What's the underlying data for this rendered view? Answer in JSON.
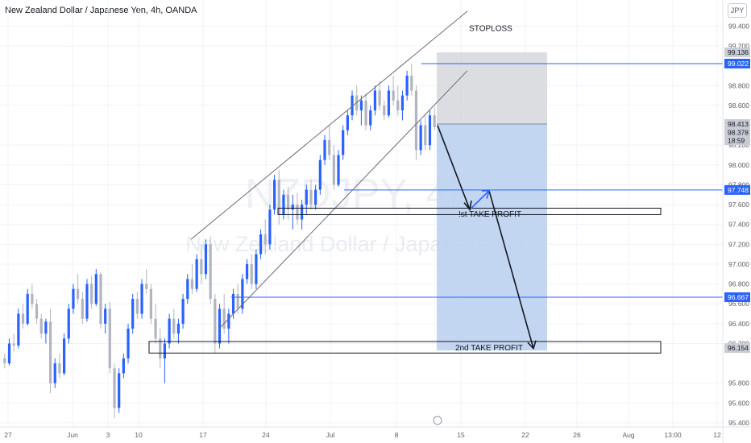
{
  "header": {
    "title": "New Zealand Dollar / Japanese Yen, 4h, OANDA",
    "currency_button": "JPY"
  },
  "watermark": {
    "symbol": "NZDJPY, 4h",
    "name": "New Zealand Dollar / Japanese Yen"
  },
  "colors": {
    "up_candle": "#2962ff",
    "down_candle": "#b2b5be",
    "stop_zone": "#d6d7dc",
    "profit_zone": "#bcd1ef",
    "line_blue": "#2962ff"
  },
  "chart_data": {
    "type": "candlestick",
    "title": "New Zealand Dollar / Japanese Yen, 4h, OANDA",
    "ylim": [
      95.4,
      99.46
    ],
    "y_ticks": [
      "99.400",
      "99.200",
      "98.800",
      "98.600",
      "98.200",
      "98.000",
      "97.800",
      "97.600",
      "97.400",
      "97.200",
      "97.000",
      "96.800",
      "96.600",
      "96.400",
      "96.200",
      "95.800",
      "95.600",
      "95.400"
    ],
    "x_ticks": [
      "27",
      "Jun",
      "3",
      "10",
      "17",
      "24",
      "Jul",
      "8",
      "15",
      "22",
      "26",
      "Aug",
      "13:00",
      "12"
    ],
    "price_tags": [
      {
        "value": "99.136",
        "style": "gray"
      },
      {
        "value": "99.022",
        "style": "blue"
      },
      {
        "value": "98.413",
        "style": "gray"
      },
      {
        "value": "98.378",
        "style": "gray"
      },
      {
        "value": "18:59",
        "style": "gray"
      },
      {
        "value": "97.748",
        "style": "blue"
      },
      {
        "value": "96.667",
        "style": "blue"
      },
      {
        "value": "96.154",
        "style": "gray"
      }
    ],
    "annotations": {
      "stoploss": "STOPLOSS",
      "tp1": "!st TAKE PROFIT",
      "tp2": "2nd TAKE PROFIT"
    },
    "levels": {
      "stop_top": 99.136,
      "stop_line": 99.022,
      "entry": 98.413,
      "h_line": 97.748,
      "lower_line": 96.667,
      "tp1_zone": [
        97.48,
        97.54
      ],
      "tp2_zone": [
        96.12,
        96.22
      ],
      "profit_bottom": 96.13
    },
    "candles": [
      [
        96.05,
        96.1,
        95.95,
        96.0
      ],
      [
        96.0,
        96.25,
        95.98,
        96.2
      ],
      [
        96.2,
        96.3,
        96.12,
        96.18
      ],
      [
        96.18,
        96.55,
        96.15,
        96.5
      ],
      [
        96.5,
        96.6,
        96.35,
        96.4
      ],
      [
        96.4,
        96.75,
        96.38,
        96.7
      ],
      [
        96.7,
        96.8,
        96.55,
        96.6
      ],
      [
        96.6,
        96.65,
        96.4,
        96.45
      ],
      [
        96.45,
        96.5,
        96.25,
        96.3
      ],
      [
        96.3,
        96.45,
        96.2,
        96.42
      ],
      [
        96.42,
        96.55,
        95.7,
        95.8
      ],
      [
        95.8,
        96.05,
        95.75,
        96.0
      ],
      [
        96.0,
        96.1,
        95.85,
        95.9
      ],
      [
        95.9,
        96.3,
        95.88,
        96.25
      ],
      [
        96.25,
        96.6,
        96.2,
        96.55
      ],
      [
        96.55,
        96.8,
        96.5,
        96.75
      ],
      [
        96.75,
        96.9,
        96.6,
        96.65
      ],
      [
        96.65,
        96.72,
        96.4,
        96.45
      ],
      [
        96.45,
        96.85,
        96.42,
        96.8
      ],
      [
        96.8,
        96.88,
        96.55,
        96.6
      ],
      [
        96.6,
        96.95,
        96.58,
        96.9
      ],
      [
        96.9,
        96.92,
        96.35,
        96.4
      ],
      [
        96.4,
        96.6,
        96.3,
        96.55
      ],
      [
        96.55,
        96.62,
        95.9,
        95.95
      ],
      [
        95.95,
        96.0,
        95.45,
        95.55
      ],
      [
        95.55,
        95.95,
        95.5,
        95.9
      ],
      [
        95.9,
        96.1,
        95.85,
        96.05
      ],
      [
        96.05,
        96.4,
        96.0,
        96.35
      ],
      [
        96.35,
        96.7,
        96.3,
        96.65
      ],
      [
        96.65,
        96.72,
        96.45,
        96.5
      ],
      [
        96.5,
        96.85,
        96.45,
        96.8
      ],
      [
        96.8,
        96.95,
        96.7,
        96.75
      ],
      [
        96.75,
        96.8,
        96.4,
        96.45
      ],
      [
        96.45,
        96.6,
        96.2,
        96.25
      ],
      [
        96.25,
        96.35,
        95.95,
        96.05
      ],
      [
        96.05,
        96.25,
        95.8,
        96.2
      ],
      [
        96.2,
        96.5,
        96.15,
        96.45
      ],
      [
        96.45,
        96.55,
        96.25,
        96.3
      ],
      [
        96.3,
        96.45,
        96.2,
        96.4
      ],
      [
        96.4,
        96.7,
        96.35,
        96.65
      ],
      [
        96.65,
        96.9,
        96.6,
        96.85
      ],
      [
        96.85,
        97.0,
        96.7,
        96.75
      ],
      [
        96.75,
        97.1,
        96.72,
        97.05
      ],
      [
        97.05,
        97.2,
        96.8,
        96.9
      ],
      [
        96.9,
        97.25,
        96.85,
        97.2
      ],
      [
        97.2,
        97.28,
        96.6,
        96.65
      ],
      [
        96.65,
        96.7,
        96.1,
        96.2
      ],
      [
        96.2,
        96.6,
        96.15,
        96.55
      ],
      [
        96.55,
        96.7,
        96.3,
        96.35
      ],
      [
        96.35,
        96.55,
        96.2,
        96.5
      ],
      [
        96.5,
        96.75,
        96.45,
        96.7
      ],
      [
        96.7,
        96.8,
        96.5,
        96.55
      ],
      [
        96.55,
        96.9,
        96.5,
        96.85
      ],
      [
        96.85,
        97.05,
        96.8,
        97.0
      ],
      [
        97.0,
        97.1,
        96.75,
        96.8
      ],
      [
        96.8,
        97.15,
        96.75,
        97.1
      ],
      [
        97.1,
        97.35,
        97.05,
        97.3
      ],
      [
        97.3,
        97.45,
        97.1,
        97.2
      ],
      [
        97.2,
        97.6,
        97.15,
        97.55
      ],
      [
        97.55,
        97.9,
        97.5,
        97.85
      ],
      [
        97.85,
        97.95,
        97.4,
        97.5
      ],
      [
        97.5,
        97.75,
        97.45,
        97.7
      ],
      [
        97.7,
        97.78,
        97.45,
        97.55
      ],
      [
        97.55,
        97.7,
        97.35,
        97.6
      ],
      [
        97.6,
        97.72,
        97.4,
        97.45
      ],
      [
        97.45,
        97.65,
        97.35,
        97.6
      ],
      [
        97.6,
        97.8,
        97.5,
        97.75
      ],
      [
        97.75,
        97.85,
        97.55,
        97.6
      ],
      [
        97.6,
        97.8,
        97.55,
        97.75
      ],
      [
        97.75,
        98.1,
        97.7,
        98.05
      ],
      [
        98.05,
        98.3,
        98.0,
        98.25
      ],
      [
        98.25,
        98.4,
        98.05,
        98.1
      ],
      [
        98.1,
        98.2,
        97.75,
        97.8
      ],
      [
        97.8,
        98.15,
        97.78,
        98.1
      ],
      [
        98.1,
        98.4,
        98.05,
        98.35
      ],
      [
        98.35,
        98.55,
        98.3,
        98.5
      ],
      [
        98.5,
        98.75,
        98.45,
        98.7
      ],
      [
        98.7,
        98.8,
        98.5,
        98.55
      ],
      [
        98.55,
        98.7,
        98.4,
        98.65
      ],
      [
        98.65,
        98.72,
        98.35,
        98.4
      ],
      [
        98.4,
        98.6,
        98.35,
        98.55
      ],
      [
        98.55,
        98.8,
        98.5,
        98.75
      ],
      [
        98.75,
        98.85,
        98.55,
        98.6
      ],
      [
        98.6,
        98.65,
        98.45,
        98.5
      ],
      [
        98.5,
        98.8,
        98.48,
        98.75
      ],
      [
        98.75,
        98.9,
        98.6,
        98.65
      ],
      [
        98.65,
        98.8,
        98.5,
        98.55
      ],
      [
        98.55,
        98.75,
        98.45,
        98.7
      ],
      [
        98.7,
        98.95,
        98.65,
        98.9
      ],
      [
        98.9,
        99.02,
        98.7,
        98.75
      ],
      [
        98.75,
        98.8,
        98.05,
        98.15
      ],
      [
        98.15,
        98.45,
        98.1,
        98.4
      ],
      [
        98.4,
        98.5,
        98.15,
        98.2
      ],
      [
        98.2,
        98.55,
        98.15,
        98.5
      ],
      [
        98.5,
        98.58,
        98.35,
        98.38
      ]
    ]
  }
}
